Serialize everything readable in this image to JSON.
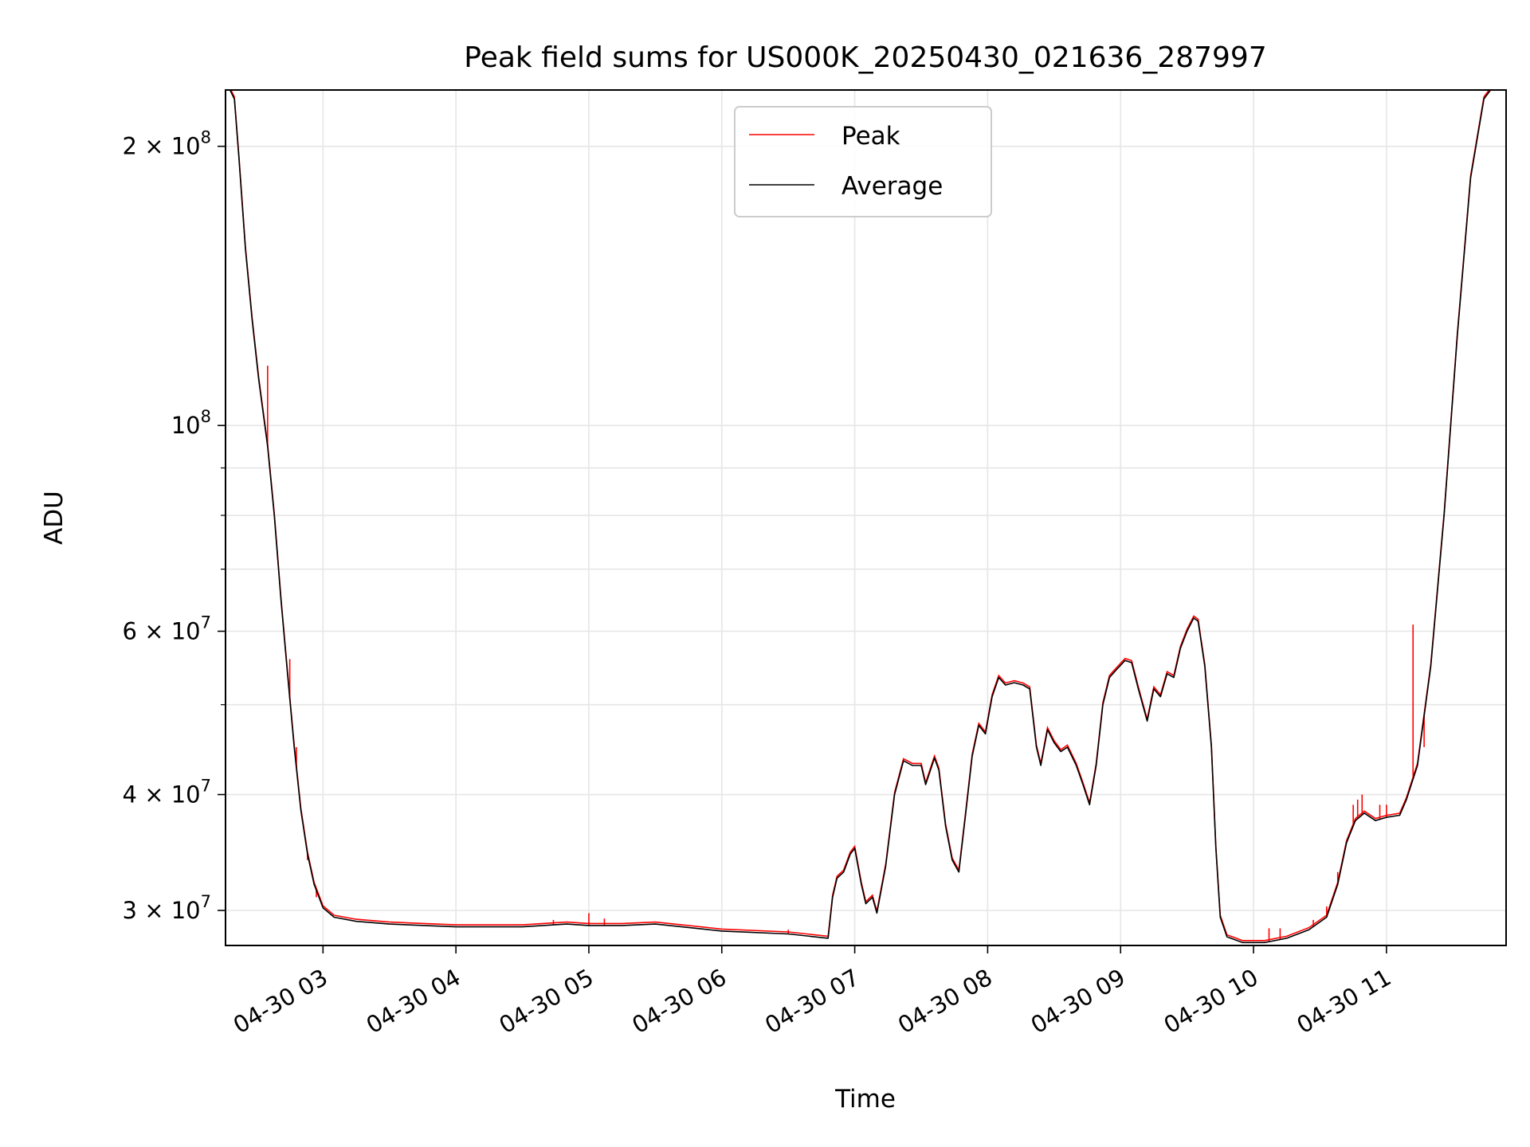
{
  "chart_data": {
    "type": "line",
    "title": "Peak field sums for US000K_20250430_021636_287997",
    "xlabel": "Time",
    "ylabel": "ADU",
    "y_scale": "log",
    "xlim": [
      "2025-04-30 02:16",
      "2025-04-30 11:54"
    ],
    "ylim": [
      27500000,
      230000000
    ],
    "grid": true,
    "legend": {
      "placement": "top-center"
    },
    "x_ticks": [
      "04-30 03",
      "04-30 04",
      "04-30 05",
      "04-30 06",
      "04-30 07",
      "04-30 08",
      "04-30 09",
      "04-30 10",
      "04-30 11"
    ],
    "x_tick_times": [
      "2025-04-30 03:00",
      "2025-04-30 04:00",
      "2025-04-30 05:00",
      "2025-04-30 06:00",
      "2025-04-30 07:00",
      "2025-04-30 08:00",
      "2025-04-30 09:00",
      "2025-04-30 10:00",
      "2025-04-30 11:00"
    ],
    "y_ticks": [
      {
        "value": 200000000,
        "mantissa": "2",
        "exponent": "8"
      },
      {
        "value": 100000000,
        "mantissa": "",
        "exponent": "8"
      },
      {
        "value": 60000000,
        "mantissa": "6",
        "exponent": "7"
      },
      {
        "value": 40000000,
        "mantissa": "4",
        "exponent": "7"
      },
      {
        "value": 30000000,
        "mantissa": "3",
        "exponent": "7"
      }
    ],
    "y_minor_ticks": [
      50000000,
      70000000,
      80000000,
      90000000
    ],
    "series": [
      {
        "name": "Peak",
        "color": "#ff0000",
        "spikes": [
          [
            "2025-04-30 02:35",
            116000000
          ],
          [
            "2025-04-30 02:45",
            56000000
          ],
          [
            "2025-04-30 02:48",
            45000000
          ],
          [
            "2025-04-30 02:53",
            34000000
          ],
          [
            "2025-04-30 02:57",
            31000000
          ],
          [
            "2025-04-30 04:44",
            29300000
          ],
          [
            "2025-04-30 05:00",
            29800000
          ],
          [
            "2025-04-30 05:07",
            29400000
          ],
          [
            "2025-04-30 06:30",
            28600000
          ],
          [
            "2025-04-30 10:07",
            28700000
          ],
          [
            "2025-04-30 10:12",
            28700000
          ],
          [
            "2025-04-30 10:27",
            29300000
          ],
          [
            "2025-04-30 10:33",
            30300000
          ],
          [
            "2025-04-30 10:38",
            33000000
          ],
          [
            "2025-04-30 10:45",
            39000000
          ],
          [
            "2025-04-30 10:47",
            39500000
          ],
          [
            "2025-04-30 10:49",
            40000000
          ],
          [
            "2025-04-30 10:57",
            39000000
          ],
          [
            "2025-04-30 11:00",
            39000000
          ],
          [
            "2025-04-30 11:12",
            61000000
          ],
          [
            "2025-04-30 11:17",
            45000000
          ]
        ]
      },
      {
        "name": "Average",
        "color": "#000000",
        "points": [
          [
            "2025-04-30 02:18",
            230000000
          ],
          [
            "2025-04-30 02:20",
            225000000
          ],
          [
            "2025-04-30 02:22",
            195000000
          ],
          [
            "2025-04-30 02:25",
            155000000
          ],
          [
            "2025-04-30 02:28",
            130000000
          ],
          [
            "2025-04-30 02:31",
            112000000
          ],
          [
            "2025-04-30 02:35",
            95000000
          ],
          [
            "2025-04-30 02:38",
            80000000
          ],
          [
            "2025-04-30 02:41",
            65000000
          ],
          [
            "2025-04-30 02:44",
            54000000
          ],
          [
            "2025-04-30 02:47",
            45000000
          ],
          [
            "2025-04-30 02:50",
            38500000
          ],
          [
            "2025-04-30 02:53",
            34500000
          ],
          [
            "2025-04-30 02:56",
            32000000
          ],
          [
            "2025-04-30 03:00",
            30200000
          ],
          [
            "2025-04-30 03:05",
            29500000
          ],
          [
            "2025-04-30 03:15",
            29200000
          ],
          [
            "2025-04-30 03:30",
            29000000
          ],
          [
            "2025-04-30 04:00",
            28800000
          ],
          [
            "2025-04-30 04:30",
            28800000
          ],
          [
            "2025-04-30 04:50",
            29000000
          ],
          [
            "2025-04-30 05:00",
            28900000
          ],
          [
            "2025-04-30 05:15",
            28900000
          ],
          [
            "2025-04-30 05:30",
            29000000
          ],
          [
            "2025-04-30 06:00",
            28500000
          ],
          [
            "2025-04-30 06:30",
            28300000
          ],
          [
            "2025-04-30 06:48",
            28000000
          ],
          [
            "2025-04-30 06:50",
            31000000
          ],
          [
            "2025-04-30 06:52",
            32500000
          ],
          [
            "2025-04-30 06:55",
            33000000
          ],
          [
            "2025-04-30 06:58",
            34500000
          ],
          [
            "2025-04-30 07:00",
            35000000
          ],
          [
            "2025-04-30 07:03",
            32000000
          ],
          [
            "2025-04-30 07:05",
            30500000
          ],
          [
            "2025-04-30 07:08",
            31000000
          ],
          [
            "2025-04-30 07:10",
            29800000
          ],
          [
            "2025-04-30 07:14",
            33500000
          ],
          [
            "2025-04-30 07:18",
            40000000
          ],
          [
            "2025-04-30 07:22",
            43500000
          ],
          [
            "2025-04-30 07:26",
            43000000
          ],
          [
            "2025-04-30 07:30",
            43000000
          ],
          [
            "2025-04-30 07:32",
            41000000
          ],
          [
            "2025-04-30 07:36",
            43800000
          ],
          [
            "2025-04-30 07:38",
            42500000
          ],
          [
            "2025-04-30 07:41",
            37000000
          ],
          [
            "2025-04-30 07:44",
            34000000
          ],
          [
            "2025-04-30 07:47",
            33000000
          ],
          [
            "2025-04-30 07:50",
            38000000
          ],
          [
            "2025-04-30 07:53",
            44000000
          ],
          [
            "2025-04-30 07:56",
            47500000
          ],
          [
            "2025-04-30 07:59",
            46500000
          ],
          [
            "2025-04-30 08:02",
            51000000
          ],
          [
            "2025-04-30 08:05",
            53500000
          ],
          [
            "2025-04-30 08:08",
            52500000
          ],
          [
            "2025-04-30 08:12",
            52800000
          ],
          [
            "2025-04-30 08:16",
            52500000
          ],
          [
            "2025-04-30 08:19",
            52000000
          ],
          [
            "2025-04-30 08:22",
            45000000
          ],
          [
            "2025-04-30 08:24",
            43000000
          ],
          [
            "2025-04-30 08:27",
            47000000
          ],
          [
            "2025-04-30 08:30",
            45500000
          ],
          [
            "2025-04-30 08:33",
            44500000
          ],
          [
            "2025-04-30 08:36",
            45000000
          ],
          [
            "2025-04-30 08:40",
            43000000
          ],
          [
            "2025-04-30 08:43",
            41000000
          ],
          [
            "2025-04-30 08:46",
            39000000
          ],
          [
            "2025-04-30 08:49",
            43000000
          ],
          [
            "2025-04-30 08:52",
            50000000
          ],
          [
            "2025-04-30 08:55",
            53500000
          ],
          [
            "2025-04-30 08:58",
            54500000
          ],
          [
            "2025-04-30 09:02",
            55800000
          ],
          [
            "2025-04-30 09:05",
            55500000
          ],
          [
            "2025-04-30 09:08",
            52000000
          ],
          [
            "2025-04-30 09:12",
            48000000
          ],
          [
            "2025-04-30 09:15",
            52000000
          ],
          [
            "2025-04-30 09:18",
            51000000
          ],
          [
            "2025-04-30 09:21",
            54000000
          ],
          [
            "2025-04-30 09:24",
            53500000
          ],
          [
            "2025-04-30 09:27",
            57500000
          ],
          [
            "2025-04-30 09:30",
            60000000
          ],
          [
            "2025-04-30 09:33",
            62000000
          ],
          [
            "2025-04-30 09:35",
            61500000
          ],
          [
            "2025-04-30 09:38",
            55000000
          ],
          [
            "2025-04-30 09:41",
            45000000
          ],
          [
            "2025-04-30 09:43",
            35000000
          ],
          [
            "2025-04-30 09:45",
            29500000
          ],
          [
            "2025-04-30 09:48",
            28100000
          ],
          [
            "2025-04-30 09:55",
            27700000
          ],
          [
            "2025-04-30 10:05",
            27700000
          ],
          [
            "2025-04-30 10:15",
            28000000
          ],
          [
            "2025-04-30 10:25",
            28600000
          ],
          [
            "2025-04-30 10:33",
            29500000
          ],
          [
            "2025-04-30 10:38",
            32000000
          ],
          [
            "2025-04-30 10:42",
            35500000
          ],
          [
            "2025-04-30 10:46",
            37500000
          ],
          [
            "2025-04-30 10:50",
            38200000
          ],
          [
            "2025-04-30 10:55",
            37500000
          ],
          [
            "2025-04-30 11:00",
            37800000
          ],
          [
            "2025-04-30 11:06",
            38000000
          ],
          [
            "2025-04-30 11:09",
            39500000
          ],
          [
            "2025-04-30 11:14",
            43000000
          ],
          [
            "2025-04-30 11:20",
            55000000
          ],
          [
            "2025-04-30 11:26",
            80000000
          ],
          [
            "2025-04-30 11:32",
            125000000
          ],
          [
            "2025-04-30 11:38",
            185000000
          ],
          [
            "2025-04-30 11:44",
            225000000
          ],
          [
            "2025-04-30 11:47",
            230000000
          ]
        ]
      }
    ]
  }
}
